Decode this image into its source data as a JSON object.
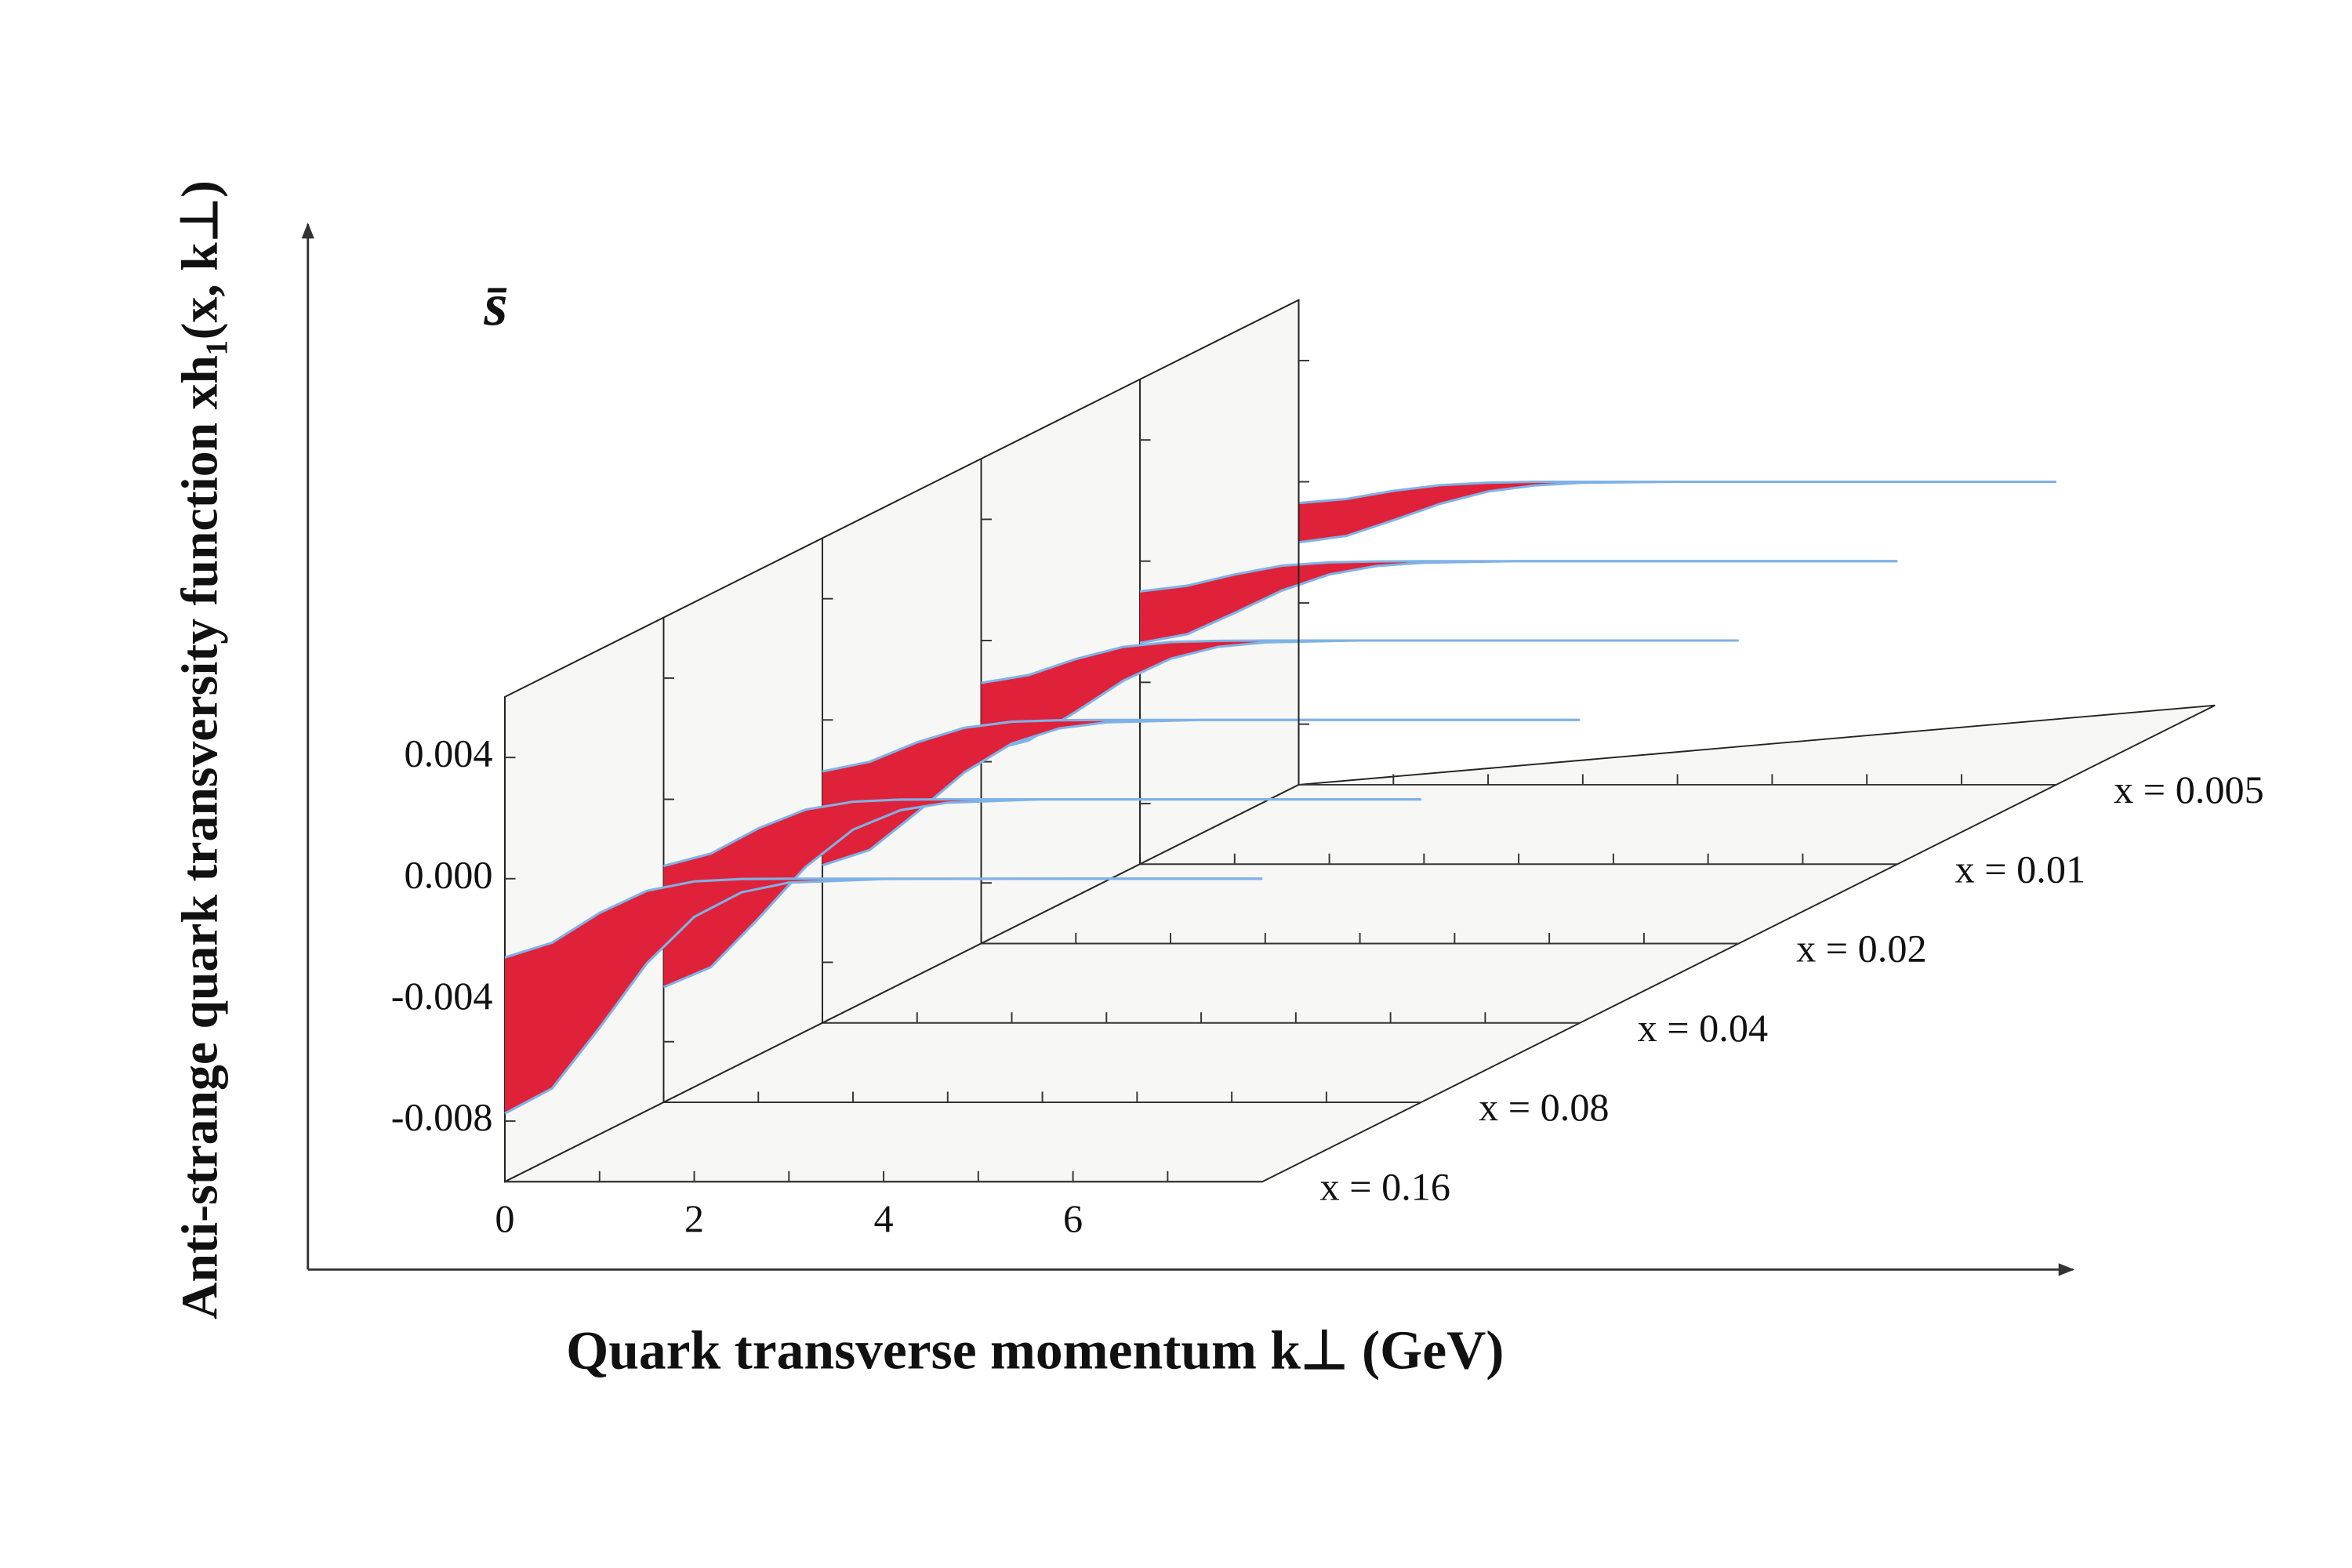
{
  "chart_data": {
    "type": "ribbon3d",
    "title": "s̄",
    "ylabel": "Anti-strange quark transversity function xh₁(x, k⊥)",
    "xlabel": "Quark transverse momentum k⊥ (GeV)",
    "xlim": [
      0,
      8
    ],
    "xticks": [
      0,
      2,
      4,
      6
    ],
    "xminorticks": [
      1,
      3,
      5,
      7
    ],
    "ylim": [
      -0.01,
      0.006
    ],
    "yticks": [
      -0.008,
      -0.004,
      {
        "value": 0,
        "label": "0.000"
      },
      0.004
    ],
    "x": [
      0,
      0.5,
      1,
      1.5,
      2,
      2.5,
      3,
      4,
      6,
      8
    ],
    "band_color": "#e0213a",
    "edge_color": "#7fb2e6",
    "series": [
      {
        "name": "x = 0.16",
        "upper": [
          -0.0026,
          -0.00211,
          -0.00113,
          -0.0004,
          -9e-05,
          -1e-05,
          0,
          0,
          0,
          0
        ],
        "lower": [
          -0.00775,
          -0.00692,
          -0.00492,
          -0.00279,
          -0.00126,
          -0.00045,
          -0.00013,
          -1e-05,
          0,
          0
        ]
      },
      {
        "name": "x = 0.08",
        "upper": [
          -0.0022,
          -0.00179,
          -0.00096,
          -0.00034,
          -8e-05,
          -1e-05,
          0,
          0,
          0,
          0
        ],
        "lower": [
          -0.0062,
          -0.00554,
          -0.00394,
          -0.00223,
          -0.001,
          -0.00036,
          -0.00011,
          0,
          0,
          0
        ]
      },
      {
        "name": "x = 0.04",
        "upper": [
          -0.0017,
          -0.00138,
          -0.00074,
          -0.00026,
          -6e-05,
          -1e-05,
          0,
          0,
          0,
          0
        ],
        "lower": [
          -0.0048,
          -0.00429,
          -0.00305,
          -0.00173,
          -0.00078,
          -0.00028,
          -8e-05,
          0,
          0,
          0
        ]
      },
      {
        "name": "x = 0.02",
        "upper": [
          -0.0014,
          -0.00114,
          -0.00061,
          -0.00021,
          -5e-05,
          -1e-05,
          0,
          0,
          0,
          0
        ],
        "lower": [
          -0.0037,
          -0.0033,
          -0.00235,
          -0.00133,
          -0.0006,
          -0.00021,
          -6e-05,
          0,
          0,
          0
        ]
      },
      {
        "name": "x = 0.01",
        "upper": [
          -0.001,
          -0.00081,
          -0.00044,
          -0.00015,
          -4e-05,
          -1e-05,
          0,
          0,
          0,
          0
        ],
        "lower": [
          -0.0027,
          -0.00241,
          -0.00171,
          -0.00097,
          -0.00044,
          -0.00016,
          -5e-05,
          0,
          0,
          0
        ]
      },
      {
        "name": "x = 0.005",
        "upper": [
          -0.0007,
          -0.00057,
          -0.0003,
          -0.00011,
          -3e-05,
          0,
          0,
          0,
          0,
          0
        ],
        "lower": [
          -0.002,
          -0.00179,
          -0.00127,
          -0.00072,
          -0.00032,
          -0.00012,
          -3e-05,
          0,
          0,
          0
        ]
      }
    ]
  }
}
